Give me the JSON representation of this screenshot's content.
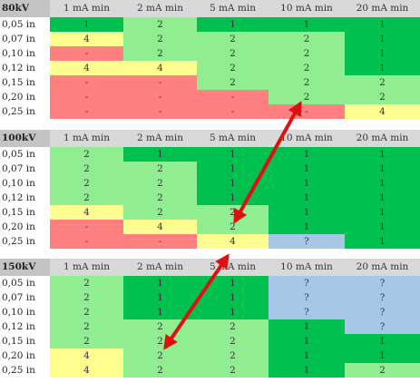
{
  "columns": [
    "1 mA min",
    "2 mA min",
    "5 mA min",
    "10 mA min",
    "20 mA min"
  ],
  "row_labels": [
    "0,05 in",
    "0,07 in",
    "0,10 in",
    "0,12 in",
    "0,15 in",
    "0,20 in",
    "0,25 in"
  ],
  "blocks": [
    {
      "kv": "80kV",
      "cells": [
        [
          {
            "t": "1",
            "c": "G"
          },
          {
            "t": "2",
            "c": "L"
          },
          {
            "t": "1",
            "c": "G"
          },
          {
            "t": "1",
            "c": "G"
          },
          {
            "t": "1",
            "c": "G"
          }
        ],
        [
          {
            "t": "4",
            "c": "Y"
          },
          {
            "t": "2",
            "c": "L"
          },
          {
            "t": "2",
            "c": "L"
          },
          {
            "t": "2",
            "c": "L"
          },
          {
            "t": "1",
            "c": "G"
          }
        ],
        [
          {
            "t": "-",
            "c": "R"
          },
          {
            "t": "2",
            "c": "L"
          },
          {
            "t": "2",
            "c": "L"
          },
          {
            "t": "2",
            "c": "L"
          },
          {
            "t": "1",
            "c": "G"
          }
        ],
        [
          {
            "t": "4",
            "c": "Y"
          },
          {
            "t": "4",
            "c": "Y"
          },
          {
            "t": "2",
            "c": "L"
          },
          {
            "t": "2",
            "c": "L"
          },
          {
            "t": "1",
            "c": "G"
          }
        ],
        [
          {
            "t": "-",
            "c": "R"
          },
          {
            "t": "-",
            "c": "R"
          },
          {
            "t": "2",
            "c": "L"
          },
          {
            "t": "2",
            "c": "L"
          },
          {
            "t": "2",
            "c": "L"
          }
        ],
        [
          {
            "t": "-",
            "c": "R"
          },
          {
            "t": "-",
            "c": "R"
          },
          {
            "t": "-",
            "c": "R"
          },
          {
            "t": "2",
            "c": "L"
          },
          {
            "t": "2",
            "c": "L"
          }
        ],
        [
          {
            "t": "-",
            "c": "R"
          },
          {
            "t": "-",
            "c": "R"
          },
          {
            "t": "-",
            "c": "R"
          },
          {
            "t": "-",
            "c": "R"
          },
          {
            "t": "4",
            "c": "Y"
          }
        ]
      ]
    },
    {
      "kv": "100kV",
      "cells": [
        [
          {
            "t": "2",
            "c": "L"
          },
          {
            "t": "1",
            "c": "G"
          },
          {
            "t": "1",
            "c": "G"
          },
          {
            "t": "1",
            "c": "G"
          },
          {
            "t": "1",
            "c": "G"
          }
        ],
        [
          {
            "t": "2",
            "c": "L"
          },
          {
            "t": "2",
            "c": "L"
          },
          {
            "t": "1",
            "c": "G"
          },
          {
            "t": "1",
            "c": "G"
          },
          {
            "t": "1",
            "c": "G"
          }
        ],
        [
          {
            "t": "2",
            "c": "L"
          },
          {
            "t": "2",
            "c": "L"
          },
          {
            "t": "1",
            "c": "G"
          },
          {
            "t": "1",
            "c": "G"
          },
          {
            "t": "1",
            "c": "G"
          }
        ],
        [
          {
            "t": "2",
            "c": "L"
          },
          {
            "t": "2",
            "c": "L"
          },
          {
            "t": "1",
            "c": "G"
          },
          {
            "t": "1",
            "c": "G"
          },
          {
            "t": "1",
            "c": "G"
          }
        ],
        [
          {
            "t": "4",
            "c": "Y"
          },
          {
            "t": "2",
            "c": "L"
          },
          {
            "t": "2",
            "c": "L"
          },
          {
            "t": "1",
            "c": "G"
          },
          {
            "t": "1",
            "c": "G"
          }
        ],
        [
          {
            "t": "-",
            "c": "R"
          },
          {
            "t": "4",
            "c": "Y"
          },
          {
            "t": "2",
            "c": "L"
          },
          {
            "t": "1",
            "c": "G"
          },
          {
            "t": "1",
            "c": "G"
          }
        ],
        [
          {
            "t": "-",
            "c": "R"
          },
          {
            "t": "-",
            "c": "R"
          },
          {
            "t": "4",
            "c": "Y"
          },
          {
            "t": "?",
            "c": "B"
          },
          {
            "t": "1",
            "c": "G"
          }
        ]
      ]
    },
    {
      "kv": "150kV",
      "cells": [
        [
          {
            "t": "2",
            "c": "L"
          },
          {
            "t": "1",
            "c": "G"
          },
          {
            "t": "1",
            "c": "G"
          },
          {
            "t": "?",
            "c": "B"
          },
          {
            "t": "?",
            "c": "B"
          }
        ],
        [
          {
            "t": "2",
            "c": "L"
          },
          {
            "t": "1",
            "c": "G"
          },
          {
            "t": "1",
            "c": "G"
          },
          {
            "t": "?",
            "c": "B"
          },
          {
            "t": "?",
            "c": "B"
          }
        ],
        [
          {
            "t": "2",
            "c": "L"
          },
          {
            "t": "1",
            "c": "G"
          },
          {
            "t": "1",
            "c": "G"
          },
          {
            "t": "?",
            "c": "B"
          },
          {
            "t": "?",
            "c": "B"
          }
        ],
        [
          {
            "t": "2",
            "c": "L"
          },
          {
            "t": "2",
            "c": "L"
          },
          {
            "t": "2",
            "c": "L"
          },
          {
            "t": "1",
            "c": "G"
          },
          {
            "t": "?",
            "c": "B"
          }
        ],
        [
          {
            "t": "2",
            "c": "L"
          },
          {
            "t": "2",
            "c": "L"
          },
          {
            "t": "2",
            "c": "L"
          },
          {
            "t": "1",
            "c": "G"
          },
          {
            "t": "1",
            "c": "G"
          }
        ],
        [
          {
            "t": "4",
            "c": "Y"
          },
          {
            "t": "2",
            "c": "L"
          },
          {
            "t": "2",
            "c": "L"
          },
          {
            "t": "1",
            "c": "G"
          },
          {
            "t": "1",
            "c": "G"
          }
        ],
        [
          {
            "t": "4",
            "c": "Y"
          },
          {
            "t": "2",
            "c": "L"
          },
          {
            "t": "2",
            "c": "L"
          },
          {
            "t": "1",
            "c": "G"
          },
          {
            "t": "2",
            "c": "L"
          }
        ]
      ]
    }
  ],
  "colors": {
    "G": "#00c050",
    "L": "#90ee90",
    "Y": "#ffff90",
    "R": "#ff8080",
    "B": "#a6c8e6",
    "header": "#d9d9d9",
    "header_kv": "#c4c4c4",
    "arrow": "#e01010"
  }
}
